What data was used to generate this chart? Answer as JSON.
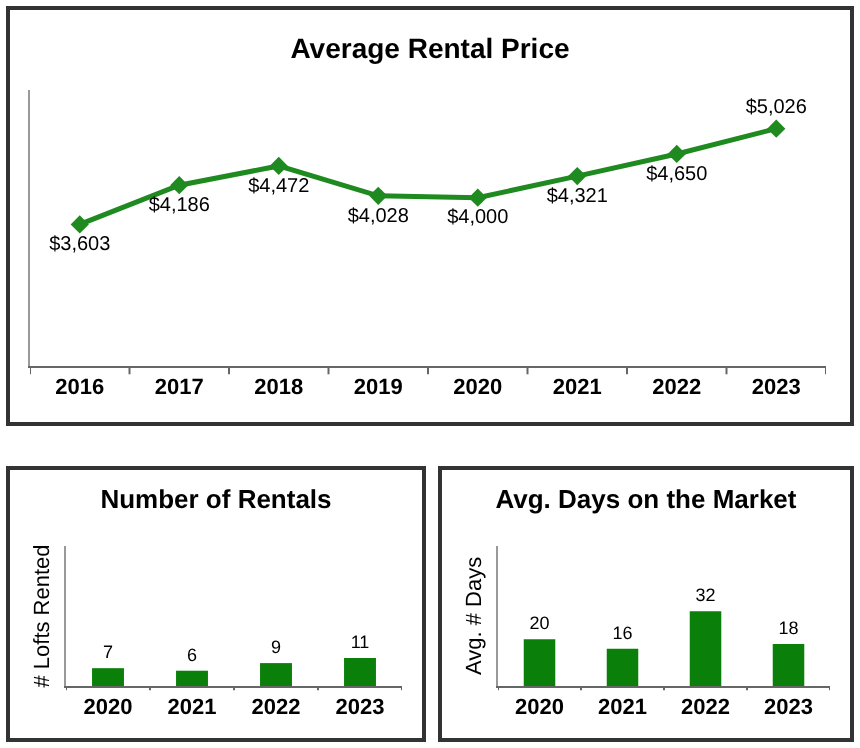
{
  "chart_data": [
    {
      "type": "line",
      "title": "Average Rental Price",
      "categories": [
        "2016",
        "2017",
        "2018",
        "2019",
        "2020",
        "2021",
        "2022",
        "2023"
      ],
      "values": [
        3603,
        4186,
        4472,
        4028,
        4000,
        4321,
        4650,
        5026
      ],
      "value_labels": [
        "$3,603",
        "$4,186",
        "$4,472",
        "$4,028",
        "$4,000",
        "$4,321",
        "$4,650",
        "$5,026"
      ],
      "color": "#1f8a1f",
      "marker": "diamond",
      "ylim": [
        1500,
        5600
      ],
      "tick_labels": "x"
    },
    {
      "type": "bar",
      "title": "Number of Rentals",
      "ylabel": "# Lofts Rented",
      "categories": [
        "2020",
        "2021",
        "2022",
        "2023"
      ],
      "values": [
        7,
        6,
        9,
        11
      ],
      "color": "#0a800a",
      "ylim": [
        0,
        55
      ],
      "data_labels": true,
      "tick_labels": "x"
    },
    {
      "type": "bar",
      "title": "Avg. Days on the Market",
      "ylabel": "Avg. # Days",
      "categories": [
        "2020",
        "2021",
        "2022",
        "2023"
      ],
      "values": [
        20,
        16,
        32,
        18
      ],
      "color": "#0a800a",
      "ylim": [
        0,
        60
      ],
      "data_labels": true,
      "tick_labels": "x"
    }
  ]
}
